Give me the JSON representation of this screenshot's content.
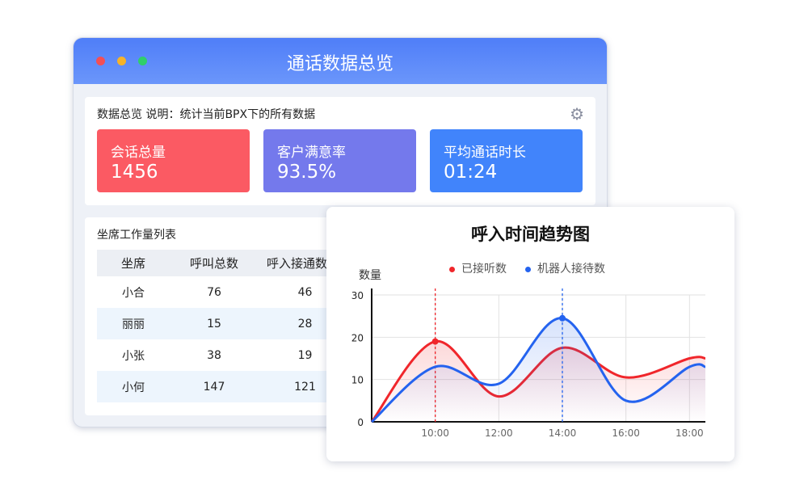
{
  "window": {
    "title": "通话数据总览"
  },
  "overview": {
    "label": "数据总览",
    "description": "说明：统计当前BPX下的所有数据",
    "settings_icon": "gear-icon",
    "cards": [
      {
        "label": "会话总量",
        "value": "1456",
        "color": "#fb5a63"
      },
      {
        "label": "客户满意率",
        "value": "93.5%",
        "color": "#7479ec"
      },
      {
        "label": "平均通话时长",
        "value": "01:24",
        "color": "#4184fb"
      }
    ]
  },
  "workload": {
    "title": "坐席工作量列表",
    "columns": [
      "坐席",
      "呼叫总数",
      "呼入接通数"
    ],
    "rows": [
      [
        "小合",
        "76",
        "46"
      ],
      [
        "丽丽",
        "15",
        "28"
      ],
      [
        "小张",
        "38",
        "19"
      ],
      [
        "小何",
        "147",
        "121"
      ]
    ]
  },
  "chart_data": {
    "type": "line",
    "title": "呼入时间趋势图",
    "ylabel": "数量",
    "xlabel": "",
    "ylim": [
      0,
      30
    ],
    "yticks": [
      "0",
      "10",
      "20",
      "30"
    ],
    "xticks": [
      "10:00",
      "12:00",
      "14:00",
      "16:00",
      "18:00"
    ],
    "grid": true,
    "legend": "top",
    "x": [
      "08:00",
      "10:00",
      "12:00",
      "14:00",
      "16:00",
      "18:00",
      "18:30"
    ],
    "series": [
      {
        "name": "已接听数",
        "color": "#f0262b",
        "values": [
          0,
          19,
          6,
          17.5,
          10.5,
          15,
          15
        ],
        "highlight": "10:00"
      },
      {
        "name": "机器人接待数",
        "color": "#2463ef",
        "values": [
          0,
          13,
          9,
          24.5,
          5,
          13,
          13
        ],
        "highlight": "14:00"
      }
    ]
  }
}
